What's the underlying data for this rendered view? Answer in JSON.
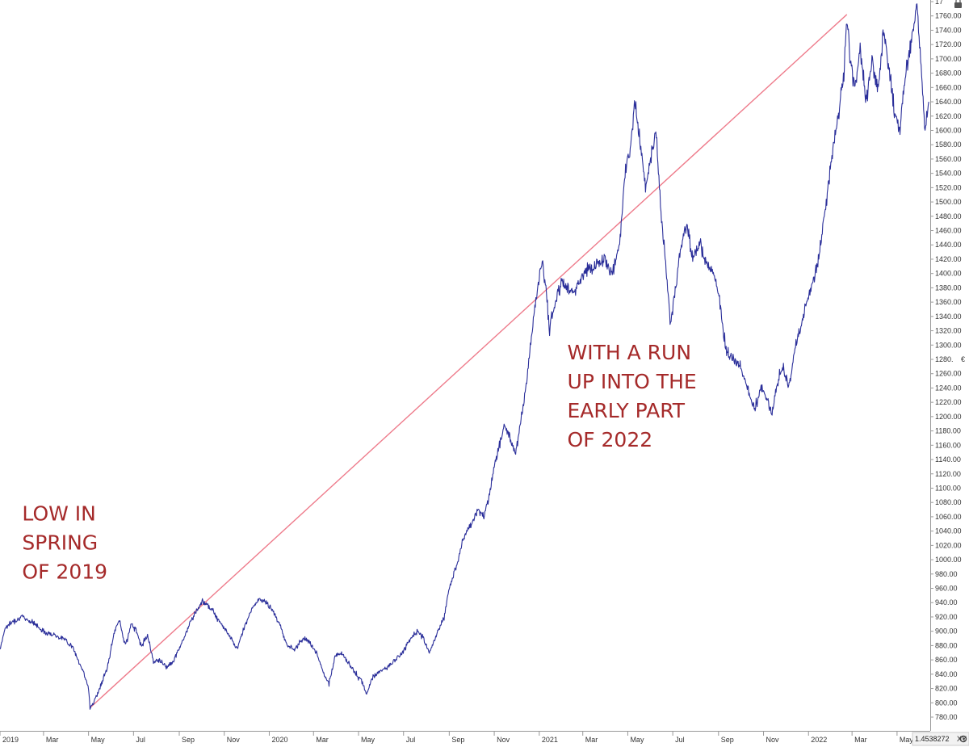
{
  "chart_data": {
    "type": "line",
    "title": "",
    "xlabel": "",
    "ylabel": "",
    "y_axis_side": "right",
    "ylim": [
      780,
      1780
    ],
    "xlim": [
      "2019-01-01",
      "2022-06-15"
    ],
    "grid": false,
    "colors": {
      "series": "#2b2f9a",
      "trendline": "#ee7b8b",
      "annotation": "#a52a2a",
      "axis": "#999999",
      "text": "#333333"
    },
    "y_ticks": [
      "780.00",
      "800.00",
      "820.00",
      "840.00",
      "860.00",
      "880.00",
      "900.00",
      "920.00",
      "940.00",
      "960.00",
      "980.00",
      "1000.00",
      "1020.00",
      "1040.00",
      "1060.00",
      "1080.00",
      "1100.00",
      "1120.00",
      "1140.00",
      "1160.00",
      "1180.00",
      "1200.00",
      "1220.00",
      "1240.00",
      "1260.00",
      "1280.",
      "1300.00",
      "1320.00",
      "1340.00",
      "1360.00",
      "1380.00",
      "1400.00",
      "1420.00",
      "1440.00",
      "1460.00",
      "1480.00",
      "1500.00",
      "1520.00",
      "1540.00",
      "1560.00",
      "1580.00",
      "1600.00",
      "1620.00",
      "1640.00",
      "1660.00",
      "1680.00",
      "1700.00",
      "1720.00",
      "1740.00",
      "1760.00",
      "17"
    ],
    "x_ticks": [
      {
        "date": "2019-01-01",
        "label": "2019"
      },
      {
        "date": "2019-03-01",
        "label": "Mar"
      },
      {
        "date": "2019-05-01",
        "label": "May"
      },
      {
        "date": "2019-07-01",
        "label": "Jul"
      },
      {
        "date": "2019-09-01",
        "label": "Sep"
      },
      {
        "date": "2019-11-01",
        "label": "Nov"
      },
      {
        "date": "2020-01-01",
        "label": "2020"
      },
      {
        "date": "2020-03-01",
        "label": "Mar"
      },
      {
        "date": "2020-05-01",
        "label": "May"
      },
      {
        "date": "2020-07-01",
        "label": "Jul"
      },
      {
        "date": "2020-09-01",
        "label": "Sep"
      },
      {
        "date": "2020-11-01",
        "label": "Nov"
      },
      {
        "date": "2021-01-01",
        "label": "2021"
      },
      {
        "date": "2021-03-01",
        "label": "Mar"
      },
      {
        "date": "2021-05-01",
        "label": "May"
      },
      {
        "date": "2021-07-01",
        "label": "Jul"
      },
      {
        "date": "2021-09-01",
        "label": "Sep"
      },
      {
        "date": "2021-11-01",
        "label": "Nov"
      },
      {
        "date": "2022-01-01",
        "label": "2022"
      },
      {
        "date": "2022-03-01",
        "label": "Mar"
      },
      {
        "date": "2022-05-01",
        "label": "May"
      }
    ],
    "series": [
      {
        "values": [
          {
            "x": "2019-01-01",
            "y": 875
          },
          {
            "x": "2019-01-08",
            "y": 905
          },
          {
            "x": "2019-01-20",
            "y": 915
          },
          {
            "x": "2019-02-01",
            "y": 920
          },
          {
            "x": "2019-02-15",
            "y": 912
          },
          {
            "x": "2019-03-01",
            "y": 900
          },
          {
            "x": "2019-03-15",
            "y": 895
          },
          {
            "x": "2019-03-28",
            "y": 890
          },
          {
            "x": "2019-04-08",
            "y": 880
          },
          {
            "x": "2019-04-18",
            "y": 858
          },
          {
            "x": "2019-04-25",
            "y": 840
          },
          {
            "x": "2019-05-01",
            "y": 820
          },
          {
            "x": "2019-05-03",
            "y": 793
          },
          {
            "x": "2019-05-10",
            "y": 805
          },
          {
            "x": "2019-05-20",
            "y": 830
          },
          {
            "x": "2019-05-28",
            "y": 855
          },
          {
            "x": "2019-06-05",
            "y": 900
          },
          {
            "x": "2019-06-12",
            "y": 915
          },
          {
            "x": "2019-06-20",
            "y": 880
          },
          {
            "x": "2019-06-28",
            "y": 910
          },
          {
            "x": "2019-07-05",
            "y": 900
          },
          {
            "x": "2019-07-12",
            "y": 880
          },
          {
            "x": "2019-07-20",
            "y": 895
          },
          {
            "x": "2019-07-28",
            "y": 858
          },
          {
            "x": "2019-08-05",
            "y": 860
          },
          {
            "x": "2019-08-15",
            "y": 850
          },
          {
            "x": "2019-08-25",
            "y": 860
          },
          {
            "x": "2019-09-05",
            "y": 885
          },
          {
            "x": "2019-09-15",
            "y": 910
          },
          {
            "x": "2019-09-25",
            "y": 930
          },
          {
            "x": "2019-10-03",
            "y": 942
          },
          {
            "x": "2019-10-12",
            "y": 935
          },
          {
            "x": "2019-10-22",
            "y": 920
          },
          {
            "x": "2019-11-01",
            "y": 905
          },
          {
            "x": "2019-11-10",
            "y": 890
          },
          {
            "x": "2019-11-18",
            "y": 875
          },
          {
            "x": "2019-11-28",
            "y": 905
          },
          {
            "x": "2019-12-08",
            "y": 930
          },
          {
            "x": "2019-12-18",
            "y": 945
          },
          {
            "x": "2019-12-28",
            "y": 940
          },
          {
            "x": "2020-01-05",
            "y": 930
          },
          {
            "x": "2020-01-15",
            "y": 910
          },
          {
            "x": "2020-01-25",
            "y": 880
          },
          {
            "x": "2020-02-05",
            "y": 875
          },
          {
            "x": "2020-02-15",
            "y": 890
          },
          {
            "x": "2020-02-25",
            "y": 885
          },
          {
            "x": "2020-03-05",
            "y": 870
          },
          {
            "x": "2020-03-15",
            "y": 840
          },
          {
            "x": "2020-03-22",
            "y": 825
          },
          {
            "x": "2020-03-30",
            "y": 865
          },
          {
            "x": "2020-04-08",
            "y": 870
          },
          {
            "x": "2020-04-18",
            "y": 855
          },
          {
            "x": "2020-04-28",
            "y": 840
          },
          {
            "x": "2020-05-05",
            "y": 830
          },
          {
            "x": "2020-05-12",
            "y": 813
          },
          {
            "x": "2020-05-20",
            "y": 835
          },
          {
            "x": "2020-05-30",
            "y": 845
          },
          {
            "x": "2020-06-10",
            "y": 850
          },
          {
            "x": "2020-06-20",
            "y": 860
          },
          {
            "x": "2020-06-30",
            "y": 870
          },
          {
            "x": "2020-07-10",
            "y": 890
          },
          {
            "x": "2020-07-20",
            "y": 900
          },
          {
            "x": "2020-07-28",
            "y": 890
          },
          {
            "x": "2020-08-05",
            "y": 870
          },
          {
            "x": "2020-08-15",
            "y": 895
          },
          {
            "x": "2020-08-25",
            "y": 920
          },
          {
            "x": "2020-09-01",
            "y": 960
          },
          {
            "x": "2020-09-10",
            "y": 990
          },
          {
            "x": "2020-09-20",
            "y": 1030
          },
          {
            "x": "2020-10-01",
            "y": 1050
          },
          {
            "x": "2020-10-10",
            "y": 1070
          },
          {
            "x": "2020-10-18",
            "y": 1060
          },
          {
            "x": "2020-10-25",
            "y": 1090
          },
          {
            "x": "2020-11-01",
            "y": 1130
          },
          {
            "x": "2020-11-08",
            "y": 1160
          },
          {
            "x": "2020-11-15",
            "y": 1190
          },
          {
            "x": "2020-11-22",
            "y": 1170
          },
          {
            "x": "2020-11-30",
            "y": 1150
          },
          {
            "x": "2020-12-08",
            "y": 1200
          },
          {
            "x": "2020-12-15",
            "y": 1250
          },
          {
            "x": "2020-12-22",
            "y": 1320
          },
          {
            "x": "2020-12-30",
            "y": 1380
          },
          {
            "x": "2021-01-05",
            "y": 1420
          },
          {
            "x": "2021-01-10",
            "y": 1380
          },
          {
            "x": "2021-01-15",
            "y": 1320
          },
          {
            "x": "2021-01-20",
            "y": 1350
          },
          {
            "x": "2021-02-01",
            "y": 1390
          },
          {
            "x": "2021-02-15",
            "y": 1370
          },
          {
            "x": "2021-03-01",
            "y": 1400
          },
          {
            "x": "2021-03-15",
            "y": 1410
          },
          {
            "x": "2021-03-30",
            "y": 1420
          },
          {
            "x": "2021-04-10",
            "y": 1400
          },
          {
            "x": "2021-04-20",
            "y": 1440
          },
          {
            "x": "2021-04-28",
            "y": 1550
          },
          {
            "x": "2021-05-05",
            "y": 1580
          },
          {
            "x": "2021-05-10",
            "y": 1640
          },
          {
            "x": "2021-05-16",
            "y": 1600
          },
          {
            "x": "2021-05-25",
            "y": 1520
          },
          {
            "x": "2021-06-01",
            "y": 1560
          },
          {
            "x": "2021-06-08",
            "y": 1600
          },
          {
            "x": "2021-06-15",
            "y": 1490
          },
          {
            "x": "2021-06-22",
            "y": 1400
          },
          {
            "x": "2021-06-28",
            "y": 1330
          },
          {
            "x": "2021-07-05",
            "y": 1380
          },
          {
            "x": "2021-07-12",
            "y": 1440
          },
          {
            "x": "2021-07-20",
            "y": 1470
          },
          {
            "x": "2021-07-28",
            "y": 1420
          },
          {
            "x": "2021-08-05",
            "y": 1440
          },
          {
            "x": "2021-08-15",
            "y": 1420
          },
          {
            "x": "2021-08-25",
            "y": 1400
          },
          {
            "x": "2021-09-01",
            "y": 1370
          },
          {
            "x": "2021-09-10",
            "y": 1300
          },
          {
            "x": "2021-09-20",
            "y": 1280
          },
          {
            "x": "2021-10-01",
            "y": 1270
          },
          {
            "x": "2021-10-10",
            "y": 1240
          },
          {
            "x": "2021-10-20",
            "y": 1210
          },
          {
            "x": "2021-10-28",
            "y": 1240
          },
          {
            "x": "2021-11-05",
            "y": 1230
          },
          {
            "x": "2021-11-12",
            "y": 1200
          },
          {
            "x": "2021-11-20",
            "y": 1250
          },
          {
            "x": "2021-11-28",
            "y": 1270
          },
          {
            "x": "2021-12-05",
            "y": 1240
          },
          {
            "x": "2021-12-15",
            "y": 1300
          },
          {
            "x": "2021-12-25",
            "y": 1340
          },
          {
            "x": "2022-01-05",
            "y": 1380
          },
          {
            "x": "2022-01-15",
            "y": 1420
          },
          {
            "x": "2022-01-25",
            "y": 1500
          },
          {
            "x": "2022-02-01",
            "y": 1560
          },
          {
            "x": "2022-02-10",
            "y": 1620
          },
          {
            "x": "2022-02-18",
            "y": 1680
          },
          {
            "x": "2022-02-22",
            "y": 1760
          },
          {
            "x": "2022-02-26",
            "y": 1700
          },
          {
            "x": "2022-03-05",
            "y": 1660
          },
          {
            "x": "2022-03-12",
            "y": 1710
          },
          {
            "x": "2022-03-20",
            "y": 1640
          },
          {
            "x": "2022-03-28",
            "y": 1700
          },
          {
            "x": "2022-04-05",
            "y": 1650
          },
          {
            "x": "2022-04-12",
            "y": 1740
          },
          {
            "x": "2022-04-20",
            "y": 1690
          },
          {
            "x": "2022-04-28",
            "y": 1620
          },
          {
            "x": "2022-05-05",
            "y": 1600
          },
          {
            "x": "2022-05-12",
            "y": 1680
          },
          {
            "x": "2022-05-20",
            "y": 1720
          },
          {
            "x": "2022-05-28",
            "y": 1780
          },
          {
            "x": "2022-06-02",
            "y": 1700
          },
          {
            "x": "2022-06-08",
            "y": 1600
          },
          {
            "x": "2022-06-13",
            "y": 1640
          }
        ]
      }
    ],
    "trendline": {
      "start": {
        "x": "2019-05-03",
        "y": 793
      },
      "end": {
        "x": "2022-02-22",
        "y": 1762
      }
    },
    "annotations": [
      {
        "lines": [
          "LOW IN",
          "SPRING",
          "OF 2019"
        ],
        "x": "2019-01-31",
        "y": 1055
      },
      {
        "lines": [
          "WITH A RUN",
          "UP INTO THE",
          "EARLY PART",
          "OF 2022"
        ],
        "x": "2021-02-08",
        "y": 1280
      }
    ],
    "readout": {
      "value": "1.4538272",
      "mode": "XY"
    }
  }
}
